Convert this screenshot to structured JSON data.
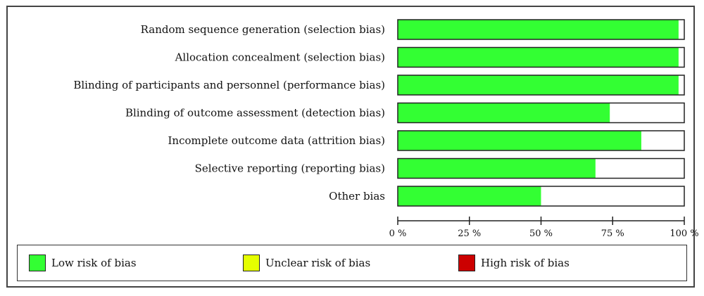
{
  "chart_data": {
    "type": "bar",
    "orientation": "horizontal",
    "stacked": true,
    "categories": [
      "Random sequence generation (selection bias)",
      "Allocation concealment (selection bias)",
      "Blinding of participants and personnel (performance bias)",
      "Blinding of outcome assessment (detection bias)",
      "Incomplete outcome data (attrition bias)",
      "Selective reporting (reporting bias)",
      "Other bias"
    ],
    "series": [
      {
        "name": "Low risk of bias",
        "color": "#33ff33",
        "values": [
          98,
          98,
          98,
          74,
          85,
          69,
          50
        ]
      },
      {
        "name": "Unclear risk of bias",
        "color": "#e5ff00",
        "values": [
          0,
          0,
          0,
          0,
          0,
          0,
          0
        ]
      },
      {
        "name": "High risk of bias",
        "color": "#cc0000",
        "values": [
          0,
          0,
          0,
          0,
          0,
          0,
          0
        ]
      }
    ],
    "xlim": [
      0,
      100
    ],
    "xticks": [
      0,
      25,
      50,
      75,
      100
    ],
    "xtick_labels": [
      "0 %",
      "25 %",
      "50 %",
      "75 %",
      "100 %"
    ],
    "legend_position": "bottom"
  }
}
